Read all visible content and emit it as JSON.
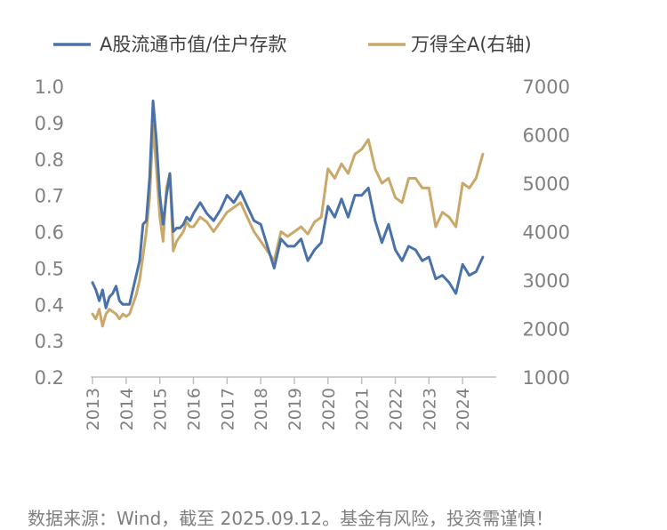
{
  "chart_data": {
    "type": "line",
    "title": "",
    "xlabel": "",
    "ylabel": "",
    "x_ticks": [
      "2013",
      "2014",
      "2015",
      "2016",
      "2017",
      "2018",
      "2019",
      "2020",
      "2021",
      "2022",
      "2023",
      "2024"
    ],
    "ylim_left": [
      0.2,
      1.0
    ],
    "yticks_left": [
      "0.2",
      "0.3",
      "0.4",
      "0.5",
      "0.6",
      "0.7",
      "0.8",
      "0.9",
      "1.0"
    ],
    "ylim_right": [
      1000,
      7000
    ],
    "yticks_right": [
      "1000",
      "2000",
      "3000",
      "4000",
      "5000",
      "6000",
      "7000"
    ],
    "grid": false,
    "legend_position": "top",
    "colors": {
      "series_left": "#4a72a8",
      "series_right": "#c9a86a",
      "axis": "#bfbfbf"
    },
    "series": [
      {
        "name": "A股流通市值/住户存款",
        "axis": "left",
        "x": [
          2013.0,
          2013.1,
          2013.2,
          2013.3,
          2013.4,
          2013.5,
          2013.6,
          2013.7,
          2013.8,
          2013.9,
          2014.0,
          2014.1,
          2014.2,
          2014.3,
          2014.4,
          2014.5,
          2014.6,
          2014.7,
          2014.8,
          2014.9,
          2015.0,
          2015.1,
          2015.2,
          2015.3,
          2015.4,
          2015.5,
          2015.6,
          2015.7,
          2015.8,
          2015.9,
          2016.0,
          2016.2,
          2016.4,
          2016.6,
          2016.8,
          2017.0,
          2017.2,
          2017.4,
          2017.6,
          2017.8,
          2018.0,
          2018.2,
          2018.4,
          2018.6,
          2018.8,
          2019.0,
          2019.2,
          2019.4,
          2019.6,
          2019.8,
          2020.0,
          2020.2,
          2020.4,
          2020.6,
          2020.8,
          2021.0,
          2021.2,
          2021.4,
          2021.6,
          2021.8,
          2022.0,
          2022.2,
          2022.4,
          2022.6,
          2022.8,
          2023.0,
          2023.2,
          2023.4,
          2023.6,
          2023.8,
          2024.0,
          2024.2,
          2024.4,
          2024.6
        ],
        "values": [
          0.46,
          0.44,
          0.41,
          0.44,
          0.39,
          0.42,
          0.43,
          0.45,
          0.41,
          0.4,
          0.4,
          0.4,
          0.44,
          0.48,
          0.52,
          0.62,
          0.63,
          0.75,
          0.96,
          0.85,
          0.7,
          0.62,
          0.7,
          0.76,
          0.6,
          0.61,
          0.61,
          0.62,
          0.64,
          0.63,
          0.65,
          0.68,
          0.65,
          0.63,
          0.66,
          0.7,
          0.68,
          0.71,
          0.67,
          0.63,
          0.62,
          0.56,
          0.5,
          0.58,
          0.56,
          0.56,
          0.58,
          0.52,
          0.55,
          0.57,
          0.67,
          0.64,
          0.69,
          0.64,
          0.7,
          0.7,
          0.72,
          0.63,
          0.57,
          0.62,
          0.55,
          0.52,
          0.56,
          0.55,
          0.52,
          0.53,
          0.47,
          0.48,
          0.46,
          0.43,
          0.51,
          0.48,
          0.49,
          0.53
        ]
      },
      {
        "name": "万得全A(右轴)",
        "axis": "right",
        "x": [
          2013.0,
          2013.1,
          2013.2,
          2013.3,
          2013.4,
          2013.5,
          2013.6,
          2013.7,
          2013.8,
          2013.9,
          2014.0,
          2014.1,
          2014.2,
          2014.3,
          2014.4,
          2014.5,
          2014.6,
          2014.7,
          2014.8,
          2014.9,
          2015.0,
          2015.1,
          2015.2,
          2015.3,
          2015.4,
          2015.5,
          2015.6,
          2015.7,
          2015.8,
          2015.9,
          2016.0,
          2016.2,
          2016.4,
          2016.6,
          2016.8,
          2017.0,
          2017.2,
          2017.4,
          2017.6,
          2017.8,
          2018.0,
          2018.2,
          2018.4,
          2018.6,
          2018.8,
          2019.0,
          2019.2,
          2019.4,
          2019.6,
          2019.8,
          2020.0,
          2020.2,
          2020.4,
          2020.6,
          2020.8,
          2021.0,
          2021.2,
          2021.4,
          2021.6,
          2021.8,
          2022.0,
          2022.2,
          2022.4,
          2022.6,
          2022.8,
          2023.0,
          2023.2,
          2023.4,
          2023.6,
          2023.8,
          2024.0,
          2024.2,
          2024.4,
          2024.6
        ],
        "values": [
          2300,
          2200,
          2400,
          2050,
          2300,
          2400,
          2350,
          2300,
          2200,
          2300,
          2250,
          2300,
          2500,
          2700,
          3000,
          3500,
          4000,
          4700,
          6200,
          5300,
          4300,
          3800,
          4900,
          5200,
          3600,
          3800,
          3900,
          4000,
          4200,
          4100,
          4100,
          4300,
          4200,
          4000,
          4200,
          4400,
          4500,
          4600,
          4300,
          4000,
          3800,
          3600,
          3400,
          4000,
          3900,
          4000,
          4100,
          3950,
          4200,
          4300,
          5300,
          5100,
          5400,
          5200,
          5600,
          5700,
          5900,
          5300,
          5000,
          5100,
          4700,
          4600,
          5100,
          5100,
          4900,
          4900,
          4100,
          4400,
          4300,
          4100,
          5000,
          4900,
          5100,
          5600
        ]
      }
    ]
  },
  "source_text": "数据来源：Wind，截至 2025.09.12。基金有风险，投资需谨慎！"
}
